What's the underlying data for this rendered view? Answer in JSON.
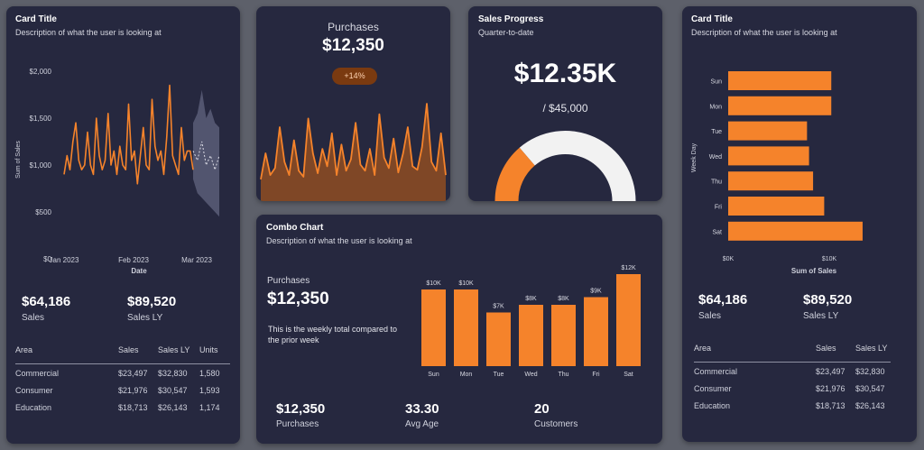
{
  "card1": {
    "title": "Card Title",
    "description": "Description of what the user is looking at",
    "chart_data": {
      "type": "line",
      "ylabel": "Sum of Sales",
      "xlabel": "Date",
      "y_ticks": [
        "$2,000",
        "$1,500",
        "$1,000",
        "$500",
        "$0"
      ],
      "x_ticks": [
        "Jan 2023",
        "Feb 2023",
        "Mar 2023"
      ],
      "ylim": [
        0,
        2000
      ],
      "series": [
        {
          "values": [
            900,
            1100,
            950,
            1250,
            1450,
            1050,
            950,
            1000,
            1350,
            1000,
            900,
            1500,
            1100,
            950,
            1050,
            1550,
            1000,
            1150,
            900,
            1200,
            1000,
            950,
            1650,
            1050,
            1150,
            800,
            1100,
            1400,
            1000,
            950,
            1700,
            1200,
            1050,
            1150,
            900,
            1300,
            1850,
            1100,
            1000,
            900,
            1400,
            1050,
            1150,
            1150,
            950
          ]
        }
      ],
      "forecast": {
        "values": [
          1150,
          1050,
          1250,
          1000,
          1100,
          950,
          1100
        ],
        "upper": [
          1450,
          1550,
          1800,
          1500,
          1600,
          1450,
          1400
        ],
        "lower": [
          850,
          700,
          650,
          600,
          550,
          500,
          450
        ]
      }
    },
    "kpis": [
      {
        "value": "$64,186",
        "label": "Sales"
      },
      {
        "value": "$89,520",
        "label": "Sales LY"
      }
    ],
    "table": {
      "headers": [
        "Area",
        "Sales",
        "Sales LY",
        "Units"
      ],
      "rows": [
        [
          "Commercial",
          "$23,497",
          "$32,830",
          "1,580"
        ],
        [
          "Consumer",
          "$21,976",
          "$30,547",
          "1,593"
        ],
        [
          "Education",
          "$18,713",
          "$26,143",
          "1,174"
        ]
      ]
    }
  },
  "purchases": {
    "label": "Purchases",
    "value": "$12,350",
    "badge": "+14%",
    "chart_data": {
      "type": "area",
      "series": [
        {
          "values": [
            25,
            55,
            30,
            38,
            85,
            45,
            30,
            70,
            35,
            28,
            95,
            55,
            32,
            60,
            40,
            78,
            30,
            65,
            35,
            48,
            90,
            42,
            35,
            60,
            30,
            100,
            50,
            38,
            72,
            33,
            55,
            85,
            40,
            36,
            62,
            112,
            45,
            35,
            78,
            30
          ]
        }
      ]
    }
  },
  "progress": {
    "title": "Sales Progress",
    "subtitle": "Quarter-to-date",
    "value": "$12.35K",
    "target": "/ $45,000",
    "fraction": 0.2744,
    "colors": {
      "fill": "#f5832b",
      "track": "#f2f2f2"
    }
  },
  "combo": {
    "title": "Combo Chart",
    "description": "Description of what the user is looking at",
    "main_label": "Purchases",
    "main_value": "$12,350",
    "note": "This is the weekly total compared to the prior week",
    "chart_data": {
      "type": "bar",
      "categories": [
        "Sun",
        "Mon",
        "Tue",
        "Wed",
        "Thu",
        "Fri",
        "Sat"
      ],
      "values": [
        10,
        10,
        7,
        8,
        8,
        9,
        12
      ],
      "labels": [
        "$10K",
        "$10K",
        "$7K",
        "$8K",
        "$8K",
        "$9K",
        "$12K"
      ]
    },
    "kpis": [
      {
        "value": "$12,350",
        "label": "Purchases"
      },
      {
        "value": "33.30",
        "label": "Avg Age"
      },
      {
        "value": "20",
        "label": "Customers"
      }
    ]
  },
  "card4": {
    "title": "Card Title",
    "description": "Description of what the user is looking at",
    "chart_data": {
      "type": "bar",
      "orientation": "horizontal",
      "ylabel": "Week Day",
      "xlabel": "Sum of Sales",
      "categories": [
        "Sun",
        "Mon",
        "Tue",
        "Wed",
        "Thu",
        "Fri",
        "Sat"
      ],
      "values": [
        10.2,
        10.2,
        7.8,
        8.0,
        8.4,
        9.5,
        13.3
      ],
      "x_ticks": [
        "$0K",
        "$10K"
      ],
      "xlim": [
        0,
        15
      ]
    },
    "kpis": [
      {
        "value": "$64,186",
        "label": "Sales"
      },
      {
        "value": "$89,520",
        "label": "Sales LY"
      }
    ],
    "table": {
      "headers": [
        "Area",
        "Sales",
        "Sales LY"
      ],
      "rows": [
        [
          "Commercial",
          "$23,497",
          "$32,830"
        ],
        [
          "Consumer",
          "$21,976",
          "$30,547"
        ],
        [
          "Education",
          "$18,713",
          "$26,143"
        ]
      ]
    }
  },
  "colors": {
    "accent": "#f5832b",
    "card": "#26283f",
    "background": "#5d606a",
    "badge": "#7a3a10"
  }
}
